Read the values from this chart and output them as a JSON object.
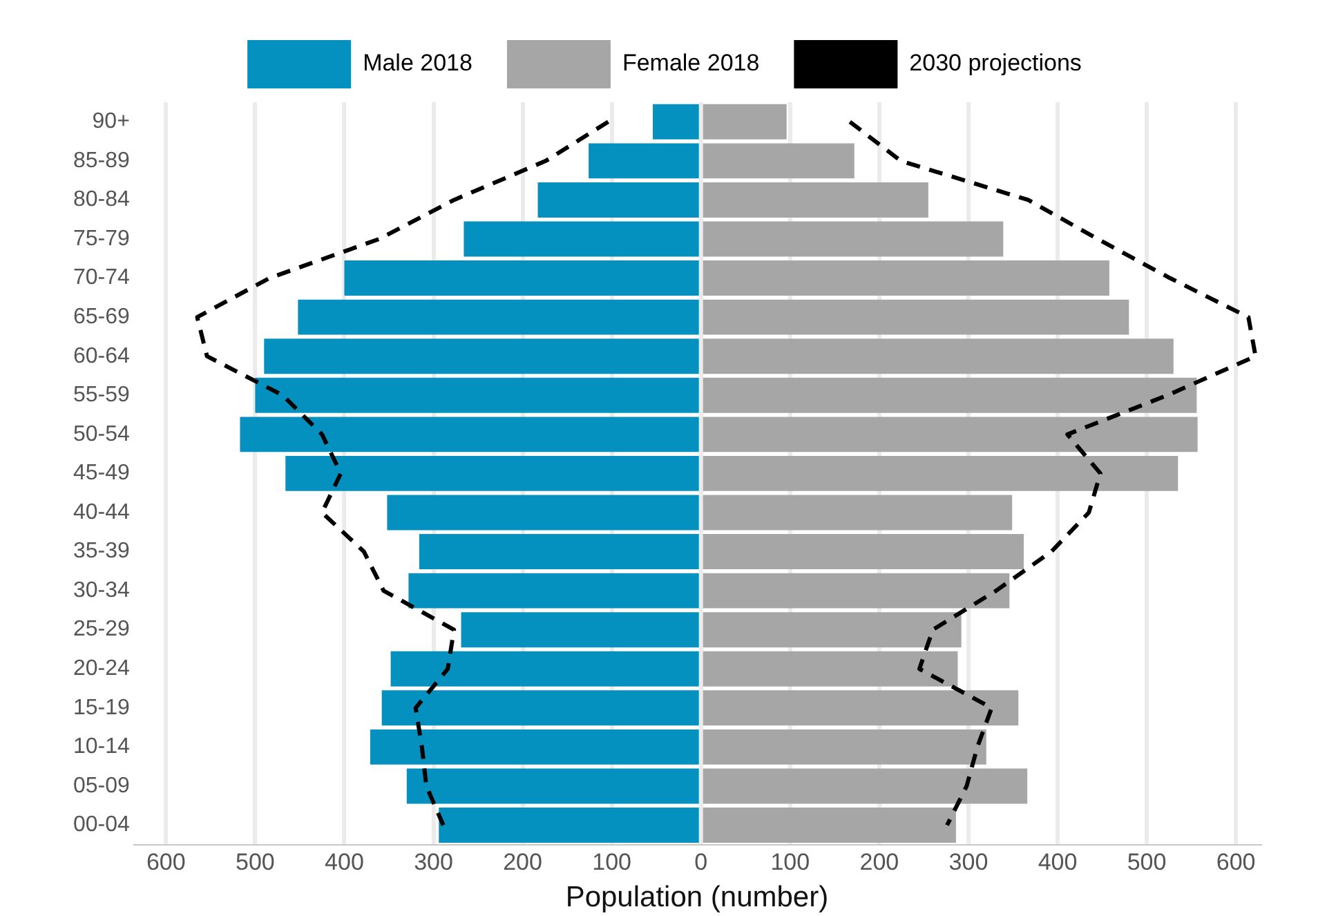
{
  "chart_data": {
    "type": "bar",
    "orientation": "horizontal",
    "stacked": true,
    "xlabel": "Population (number)",
    "categories": [
      "90+",
      "85-89",
      "80-84",
      "75-79",
      "70-74",
      "65-69",
      "60-64",
      "55-59",
      "50-54",
      "45-49",
      "40-44",
      "35-39",
      "30-34",
      "25-29",
      "20-24",
      "15-19",
      "10-14",
      "05-09",
      "00-04"
    ],
    "series": [
      {
        "name": "Male 2018",
        "color": "#0591c0",
        "values": [
          -54,
          -126,
          -183,
          -266,
          -400,
          -452,
          -490,
          -500,
          -517,
          -466,
          -352,
          -316,
          -328,
          -269,
          -348,
          -358,
          -371,
          -330,
          -294
        ]
      },
      {
        "name": "Female 2018",
        "color": "#a6a6a6",
        "values": [
          96,
          172,
          255,
          339,
          458,
          480,
          530,
          556,
          557,
          535,
          349,
          362,
          346,
          292,
          288,
          356,
          320,
          366,
          286
        ]
      },
      {
        "name": "2030 projections",
        "type": "line",
        "color": "#000000",
        "line_style": "dashed",
        "values": [
          -104,
          -174,
          -277,
          -361,
          -484,
          -565,
          -554,
          -469,
          -425,
          -404,
          -425,
          -378,
          -356,
          -277,
          -284,
          -320,
          -313,
          -308,
          -289
        ]
      },
      {
        "type": "line",
        "color": "#000000",
        "line_style": "dashed",
        "values": [
          167,
          224,
          367,
          445,
          526,
          614,
          622,
          523,
          411,
          448,
          435,
          393,
          331,
          260,
          245,
          326,
          310,
          298,
          276
        ]
      }
    ],
    "xlim": [
      -636,
      627
    ],
    "xticks": [
      {
        "value": -600,
        "label": "600"
      },
      {
        "value": -500,
        "label": "500"
      },
      {
        "value": -400,
        "label": "400"
      },
      {
        "value": -300,
        "label": "300"
      },
      {
        "value": -200,
        "label": "200"
      },
      {
        "value": -100,
        "label": "100"
      },
      0,
      100,
      200,
      300,
      400,
      500,
      600
    ],
    "grid": "x",
    "legend": "top",
    "marker": "none"
  }
}
